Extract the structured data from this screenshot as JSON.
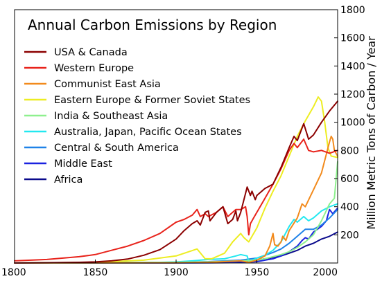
{
  "chart_data": {
    "type": "line",
    "title": "Annual Carbon Emissions by Region",
    "xlabel": "",
    "ylabel": "Million Metric Tons of Carbon / Year",
    "xlim": [
      1800,
      2000
    ],
    "ylim": [
      0,
      1800
    ],
    "xticks": [
      "1800",
      "1850",
      "1900",
      "1950",
      "2000"
    ],
    "yticks": [
      "200",
      "400",
      "600",
      "800",
      "1000",
      "1200",
      "1400",
      "1600",
      "1800"
    ],
    "grid": false,
    "legend_position": "top-left",
    "series": [
      {
        "name": "USA & Canada",
        "color": "#8b0000",
        "points": [
          [
            1800,
            0
          ],
          [
            1820,
            2
          ],
          [
            1840,
            5
          ],
          [
            1850,
            8
          ],
          [
            1860,
            15
          ],
          [
            1870,
            28
          ],
          [
            1880,
            55
          ],
          [
            1890,
            95
          ],
          [
            1900,
            170
          ],
          [
            1905,
            230
          ],
          [
            1910,
            280
          ],
          [
            1913,
            300
          ],
          [
            1915,
            270
          ],
          [
            1918,
            360
          ],
          [
            1920,
            370
          ],
          [
            1921,
            300
          ],
          [
            1925,
            360
          ],
          [
            1929,
            400
          ],
          [
            1932,
            280
          ],
          [
            1935,
            310
          ],
          [
            1937,
            370
          ],
          [
            1938,
            300
          ],
          [
            1940,
            360
          ],
          [
            1944,
            540
          ],
          [
            1946,
            480
          ],
          [
            1947,
            510
          ],
          [
            1949,
            450
          ],
          [
            1950,
            480
          ],
          [
            1955,
            530
          ],
          [
            1960,
            560
          ],
          [
            1965,
            680
          ],
          [
            1970,
            820
          ],
          [
            1973,
            900
          ],
          [
            1975,
            870
          ],
          [
            1979,
            990
          ],
          [
            1982,
            880
          ],
          [
            1985,
            910
          ],
          [
            1990,
            1000
          ],
          [
            1995,
            1080
          ],
          [
            2000,
            1150
          ]
        ]
      },
      {
        "name": "Western Europe",
        "color": "#e8231b",
        "points": [
          [
            1800,
            15
          ],
          [
            1820,
            25
          ],
          [
            1840,
            45
          ],
          [
            1850,
            60
          ],
          [
            1860,
            90
          ],
          [
            1870,
            120
          ],
          [
            1880,
            160
          ],
          [
            1890,
            210
          ],
          [
            1900,
            290
          ],
          [
            1905,
            310
          ],
          [
            1910,
            340
          ],
          [
            1913,
            380
          ],
          [
            1915,
            330
          ],
          [
            1918,
            350
          ],
          [
            1920,
            330
          ],
          [
            1925,
            360
          ],
          [
            1929,
            400
          ],
          [
            1932,
            330
          ],
          [
            1937,
            380
          ],
          [
            1940,
            380
          ],
          [
            1943,
            400
          ],
          [
            1944,
            330
          ],
          [
            1945,
            200
          ],
          [
            1946,
            280
          ],
          [
            1948,
            320
          ],
          [
            1950,
            360
          ],
          [
            1955,
            460
          ],
          [
            1960,
            560
          ],
          [
            1965,
            670
          ],
          [
            1970,
            800
          ],
          [
            1973,
            850
          ],
          [
            1975,
            820
          ],
          [
            1979,
            880
          ],
          [
            1982,
            800
          ],
          [
            1985,
            790
          ],
          [
            1990,
            800
          ],
          [
            1995,
            780
          ],
          [
            2000,
            800
          ]
        ]
      },
      {
        "name": "Communist East Asia",
        "color": "#f28a1c",
        "points": [
          [
            1800,
            0
          ],
          [
            1900,
            1
          ],
          [
            1920,
            5
          ],
          [
            1930,
            10
          ],
          [
            1940,
            15
          ],
          [
            1945,
            5
          ],
          [
            1950,
            20
          ],
          [
            1955,
            50
          ],
          [
            1958,
            120
          ],
          [
            1960,
            210
          ],
          [
            1961,
            130
          ],
          [
            1963,
            120
          ],
          [
            1965,
            150
          ],
          [
            1966,
            190
          ],
          [
            1968,
            160
          ],
          [
            1970,
            230
          ],
          [
            1975,
            320
          ],
          [
            1978,
            420
          ],
          [
            1980,
            400
          ],
          [
            1985,
            520
          ],
          [
            1990,
            640
          ],
          [
            1995,
            860
          ],
          [
            1996,
            900
          ],
          [
            1997,
            880
          ],
          [
            1998,
            800
          ],
          [
            2000,
            760
          ]
        ]
      },
      {
        "name": "Eastern Europe & Former Soviet States",
        "color": "#eded22",
        "points": [
          [
            1800,
            0
          ],
          [
            1850,
            5
          ],
          [
            1880,
            20
          ],
          [
            1900,
            50
          ],
          [
            1913,
            100
          ],
          [
            1918,
            30
          ],
          [
            1922,
            30
          ],
          [
            1930,
            70
          ],
          [
            1935,
            150
          ],
          [
            1940,
            210
          ],
          [
            1942,
            180
          ],
          [
            1945,
            150
          ],
          [
            1950,
            250
          ],
          [
            1955,
            390
          ],
          [
            1960,
            510
          ],
          [
            1965,
            620
          ],
          [
            1970,
            760
          ],
          [
            1975,
            900
          ],
          [
            1980,
            1010
          ],
          [
            1985,
            1110
          ],
          [
            1988,
            1180
          ],
          [
            1990,
            1150
          ],
          [
            1992,
            1000
          ],
          [
            1994,
            820
          ],
          [
            1996,
            760
          ],
          [
            2000,
            750
          ]
        ]
      },
      {
        "name": "India & Southeast Asia",
        "color": "#8ef08e",
        "points": [
          [
            1800,
            0
          ],
          [
            1900,
            5
          ],
          [
            1920,
            8
          ],
          [
            1940,
            15
          ],
          [
            1950,
            20
          ],
          [
            1955,
            30
          ],
          [
            1960,
            45
          ],
          [
            1965,
            60
          ],
          [
            1970,
            80
          ],
          [
            1975,
            110
          ],
          [
            1980,
            150
          ],
          [
            1985,
            200
          ],
          [
            1990,
            300
          ],
          [
            1995,
            420
          ],
          [
            1998,
            460
          ],
          [
            2000,
            720
          ]
        ]
      },
      {
        "name": "Australia, Japan, Pacific Ocean States",
        "color": "#22e8f0",
        "points": [
          [
            1800,
            0
          ],
          [
            1880,
            2
          ],
          [
            1900,
            8
          ],
          [
            1910,
            15
          ],
          [
            1920,
            25
          ],
          [
            1930,
            30
          ],
          [
            1937,
            50
          ],
          [
            1940,
            60
          ],
          [
            1944,
            50
          ],
          [
            1945,
            10
          ],
          [
            1946,
            15
          ],
          [
            1950,
            35
          ],
          [
            1955,
            55
          ],
          [
            1960,
            90
          ],
          [
            1965,
            150
          ],
          [
            1970,
            260
          ],
          [
            1973,
            310
          ],
          [
            1975,
            290
          ],
          [
            1979,
            330
          ],
          [
            1982,
            300
          ],
          [
            1985,
            320
          ],
          [
            1990,
            370
          ],
          [
            1995,
            400
          ],
          [
            2000,
            420
          ]
        ]
      },
      {
        "name": "Central & South America",
        "color": "#1f82e8",
        "points": [
          [
            1800,
            0
          ],
          [
            1900,
            5
          ],
          [
            1920,
            10
          ],
          [
            1930,
            15
          ],
          [
            1940,
            20
          ],
          [
            1950,
            35
          ],
          [
            1955,
            55
          ],
          [
            1960,
            75
          ],
          [
            1965,
            100
          ],
          [
            1970,
            140
          ],
          [
            1975,
            190
          ],
          [
            1980,
            240
          ],
          [
            1985,
            240
          ],
          [
            1990,
            270
          ],
          [
            1995,
            320
          ],
          [
            2000,
            380
          ]
        ]
      },
      {
        "name": "Middle East",
        "color": "#1a22e0",
        "points": [
          [
            1800,
            0
          ],
          [
            1920,
            1
          ],
          [
            1940,
            3
          ],
          [
            1950,
            10
          ],
          [
            1955,
            20
          ],
          [
            1960,
            30
          ],
          [
            1965,
            50
          ],
          [
            1970,
            80
          ],
          [
            1975,
            120
          ],
          [
            1978,
            160
          ],
          [
            1980,
            180
          ],
          [
            1982,
            170
          ],
          [
            1985,
            220
          ],
          [
            1990,
            260
          ],
          [
            1993,
            300
          ],
          [
            1995,
            380
          ],
          [
            1997,
            350
          ],
          [
            2000,
            390
          ]
        ]
      },
      {
        "name": "Africa",
        "color": "#0a0a8c",
        "points": [
          [
            1800,
            0
          ],
          [
            1900,
            2
          ],
          [
            1920,
            5
          ],
          [
            1930,
            8
          ],
          [
            1940,
            12
          ],
          [
            1950,
            20
          ],
          [
            1955,
            30
          ],
          [
            1960,
            40
          ],
          [
            1965,
            50
          ],
          [
            1970,
            70
          ],
          [
            1975,
            90
          ],
          [
            1980,
            120
          ],
          [
            1985,
            140
          ],
          [
            1990,
            170
          ],
          [
            1995,
            190
          ],
          [
            2000,
            220
          ]
        ]
      }
    ]
  }
}
